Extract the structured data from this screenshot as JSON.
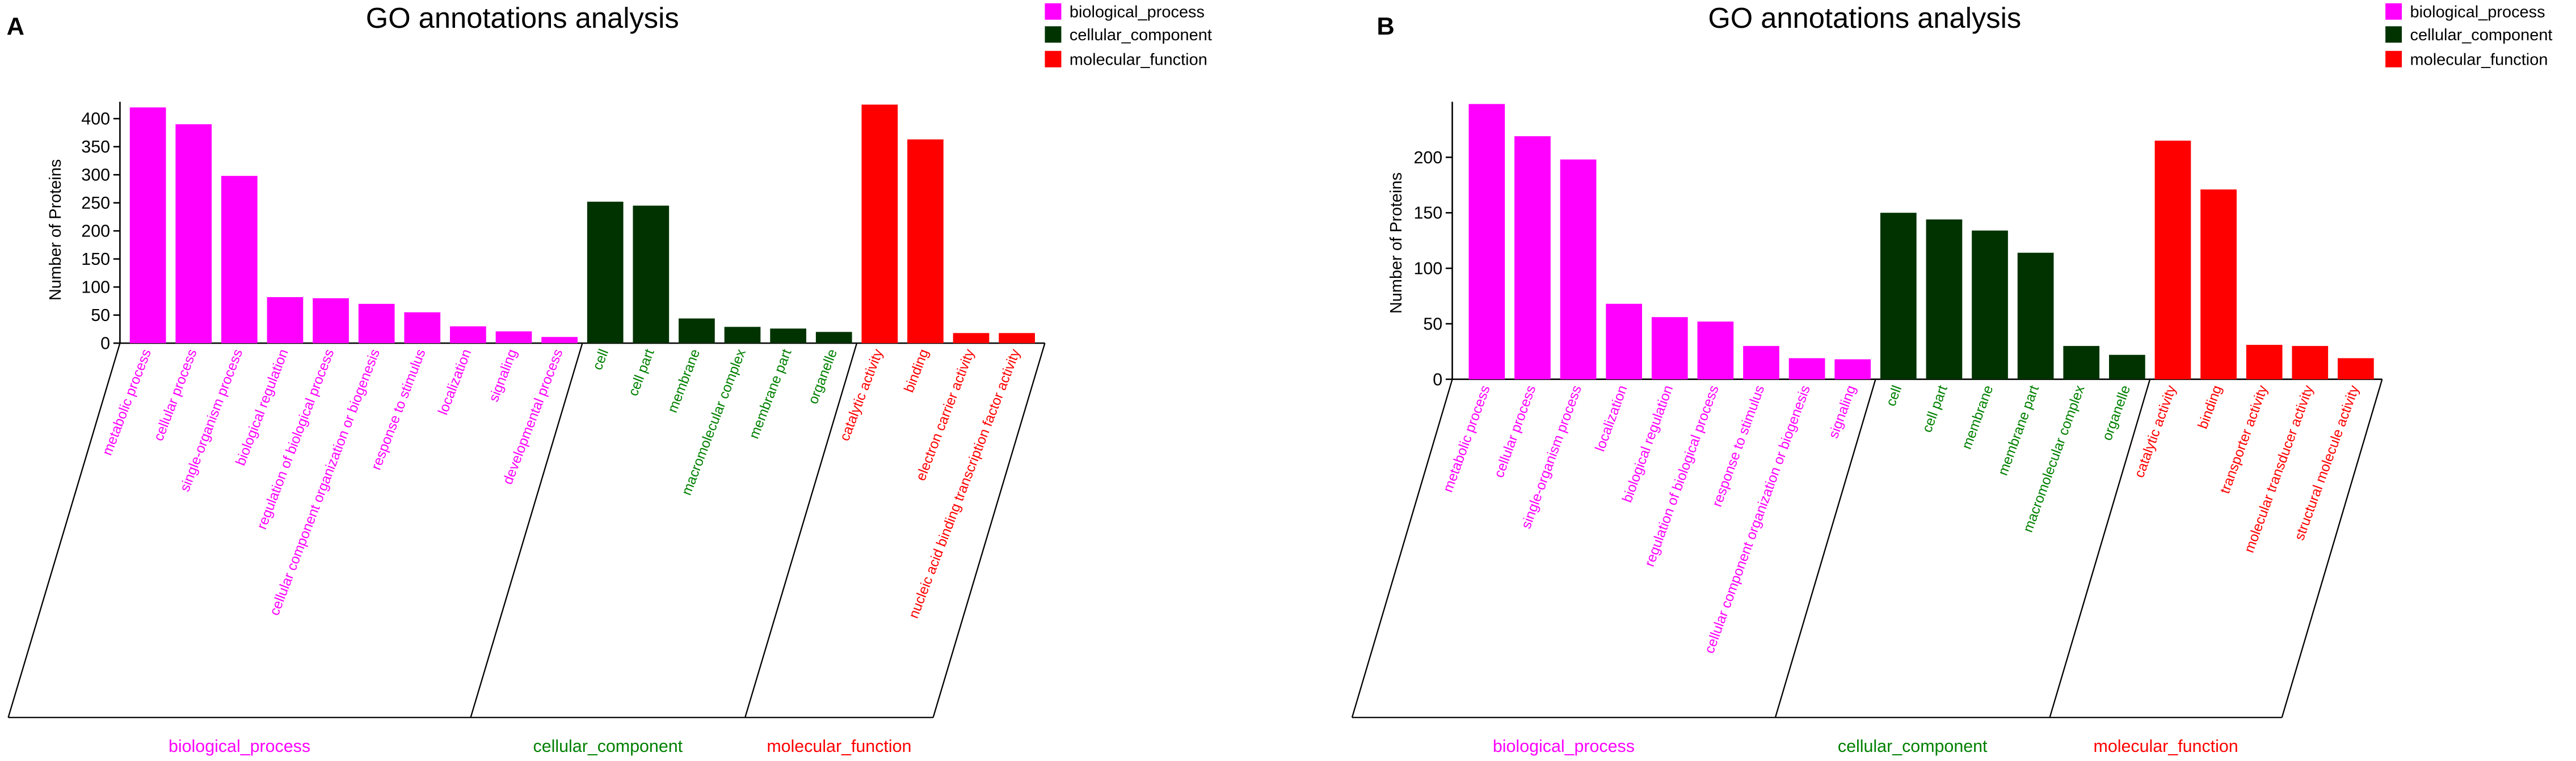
{
  "chart_data": [
    {
      "panel_label": "A",
      "type": "bar",
      "title": "GO annotations analysis",
      "ylabel": "Number of Proteins",
      "ylim": [
        0,
        430
      ],
      "yticks": [
        0,
        50,
        100,
        150,
        200,
        250,
        300,
        350,
        400
      ],
      "grid": false,
      "legend": [
        {
          "label": "biological_process",
          "color": "#ff00ff"
        },
        {
          "label": "cellular_component",
          "color": "#003300"
        },
        {
          "label": "molecular_function",
          "color": "#ff0000"
        }
      ],
      "groups": [
        {
          "name": "biological_process",
          "bar_color": "#ff00ff",
          "text_color": "#ff00ff",
          "categories": [
            "metabolic process",
            "cellular process",
            "single-organism process",
            "biological regulation",
            "regulation of biological process",
            "cellular component organization or biogenesis",
            "response to stimulus",
            "localization",
            "signaling",
            "developmental process"
          ],
          "values": [
            420,
            390,
            298,
            82,
            80,
            70,
            55,
            30,
            21,
            11
          ]
        },
        {
          "name": "cellular_component",
          "bar_color": "#003300",
          "text_color": "#008000",
          "categories": [
            "cell",
            "cell part",
            "membrane",
            "macromolecular complex",
            "membrane part",
            "organelle"
          ],
          "values": [
            252,
            245,
            44,
            29,
            26,
            20
          ]
        },
        {
          "name": "molecular_function",
          "bar_color": "#ff0000",
          "text_color": "#ff0000",
          "categories": [
            "catalytic activity",
            "binding",
            "electron carrier activity",
            "nucleic acid binding transcription factor activity"
          ],
          "values": [
            425,
            363,
            18,
            18
          ]
        }
      ]
    },
    {
      "panel_label": "B",
      "type": "bar",
      "title": "GO annotations analysis",
      "ylabel": "Number of Proteins",
      "ylim": [
        0,
        250
      ],
      "yticks": [
        0,
        50,
        100,
        150,
        200
      ],
      "grid": false,
      "legend": [
        {
          "label": "biological_process",
          "color": "#ff00ff"
        },
        {
          "label": "cellular_component",
          "color": "#003300"
        },
        {
          "label": "molecular_function",
          "color": "#ff0000"
        }
      ],
      "groups": [
        {
          "name": "biological_process",
          "bar_color": "#ff00ff",
          "text_color": "#ff00ff",
          "categories": [
            "metabolic process",
            "cellular process",
            "single-organism process",
            "localization",
            "biological regulation",
            "regulation of biological process",
            "response to stimulus",
            "cellular component organization or biogenesis",
            "signaling"
          ],
          "values": [
            248,
            219,
            198,
            68,
            56,
            52,
            30,
            19,
            18
          ]
        },
        {
          "name": "cellular_component",
          "bar_color": "#003300",
          "text_color": "#008000",
          "categories": [
            "cell",
            "cell part",
            "membrane",
            "membrane part",
            "macromolecular complex",
            "organelle"
          ],
          "values": [
            150,
            144,
            134,
            114,
            30,
            22
          ]
        },
        {
          "name": "molecular_function",
          "bar_color": "#ff0000",
          "text_color": "#ff0000",
          "categories": [
            "catalytic activity",
            "binding",
            "transporter activity",
            "molecular transducer activity",
            "structural molecule activity"
          ],
          "values": [
            215,
            171,
            31,
            30,
            19
          ]
        }
      ]
    }
  ]
}
